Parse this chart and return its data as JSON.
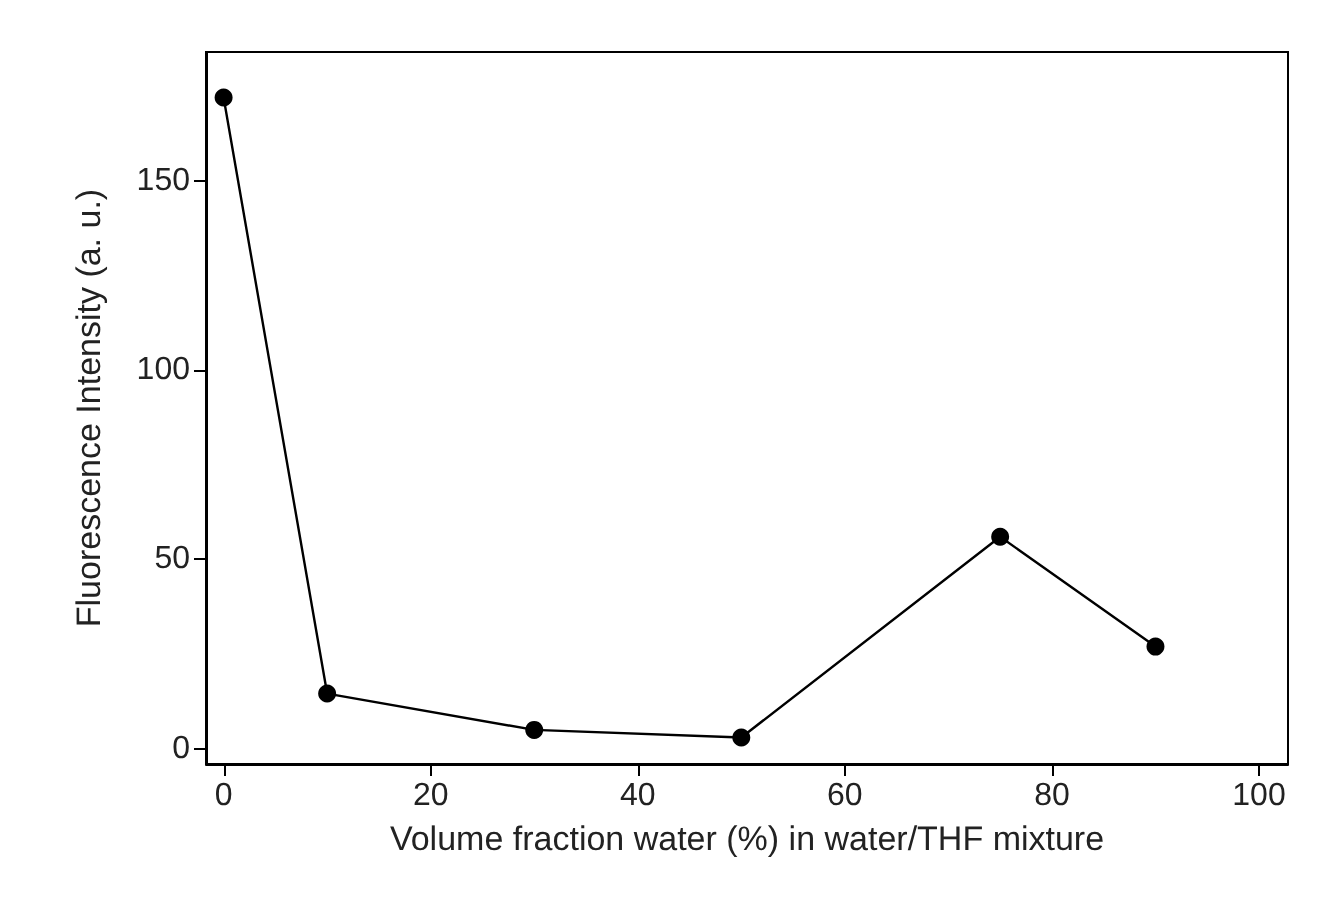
{
  "chart_data": {
    "type": "line",
    "xlabel": "Volume fraction water (%) in water/THF mixture",
    "ylabel": "Fluorescence Intensity (a. u.)",
    "x": [
      0,
      10,
      30,
      50,
      75,
      90
    ],
    "series": [
      {
        "color": "#000000",
        "values": [
          172,
          14.6,
          5,
          3,
          56,
          27
        ]
      }
    ],
    "xlim": [
      -1.7,
      102.8
    ],
    "xticks": [
      0,
      20,
      40,
      60,
      80,
      100
    ],
    "ylim": [
      -4,
      184
    ],
    "yticks": [
      0,
      50,
      100,
      150
    ],
    "marker": "circle",
    "line_style": "solid",
    "grid": false
  }
}
